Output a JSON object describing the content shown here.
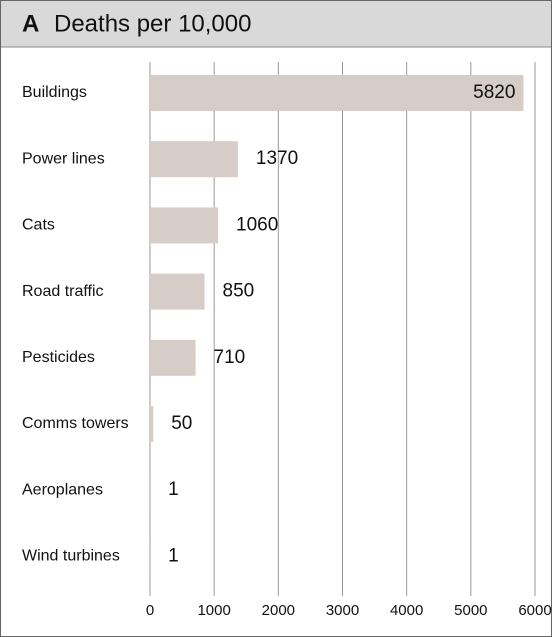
{
  "chart_data": {
    "type": "bar",
    "orientation": "horizontal",
    "panel_label": "A",
    "title": "Deaths per 10,000",
    "categories": [
      "Buildings",
      "Power lines",
      "Cats",
      "Road traffic",
      "Pesticides",
      "Comms towers",
      "Aeroplanes",
      "Wind turbines"
    ],
    "values": [
      5820,
      1370,
      1060,
      850,
      710,
      50,
      1,
      1
    ],
    "color": "#d6ccc8",
    "xlim": [
      0,
      6000
    ],
    "xticks": [
      0,
      1000,
      2000,
      3000,
      4000,
      5000,
      6000
    ],
    "grid": true
  }
}
